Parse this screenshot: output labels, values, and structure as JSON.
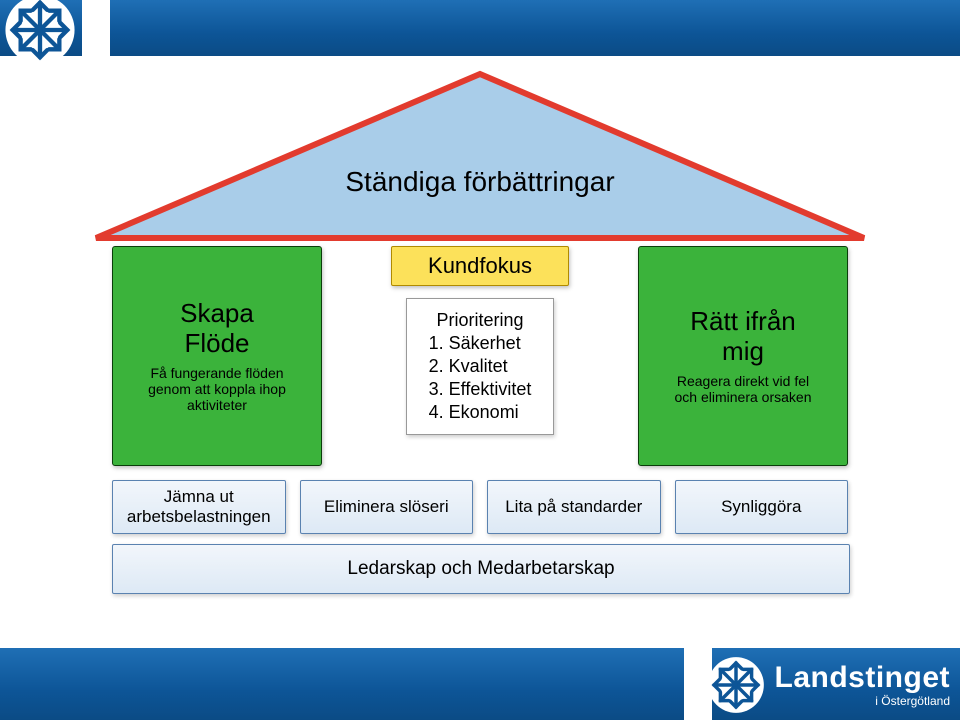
{
  "colors": {
    "bar_gradient_top": "#1f6fb5",
    "bar_gradient_bottom": "#0b4b85",
    "roof_fill": "#a9cde9",
    "roof_stroke": "#e23b2e",
    "green_fill": "#3bb33b",
    "green_stroke": "#0a3e0a",
    "yellow_fill": "#fce15a",
    "yellow_stroke": "#b08a00",
    "found_bg_top": "#f2f6fb",
    "found_bg_bottom": "#dde9f5",
    "found_stroke": "#5a82b0",
    "text": "#000000",
    "white": "#ffffff"
  },
  "roof": {
    "label": "Ständiga förbättringar",
    "stroke_width": 6,
    "font_size": 28
  },
  "pillars": {
    "left": {
      "title_line1": "Skapa",
      "title_line2": "Flöde",
      "sub_line1": "Få fungerande flöden",
      "sub_line2": "genom att koppla ihop",
      "sub_line3": "aktiviteter"
    },
    "right": {
      "title_line1": "Rätt ifrån",
      "title_line2": "mig",
      "sub_line1": "Reagera direkt vid fel",
      "sub_line2": "och eliminera orsaken"
    }
  },
  "center": {
    "kundfokus": "Kundfokus",
    "prioritering": {
      "header": "Prioritering",
      "items": [
        "1. Säkerhet",
        "2. Kvalitet",
        "3. Effektivitet",
        "4. Ekonomi"
      ]
    }
  },
  "foundation": {
    "cells": [
      "Jämna ut\narbetsbelastningen",
      "Eliminera slöseri",
      "Lita på standarder",
      "Synliggöra"
    ],
    "base": "Ledarskap och Medarbetarskap"
  },
  "branding": {
    "name": "Landstinget",
    "subtitle": "i Östergötland"
  }
}
